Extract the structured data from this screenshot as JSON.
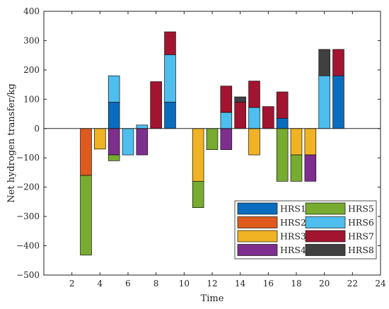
{
  "chart_data": {
    "type": "bar",
    "stacked": true,
    "title": "",
    "xlabel": "Time",
    "ylabel": "Net hydrogen transfer/kg",
    "xlim": [
      0,
      24
    ],
    "ylim": [
      -500,
      400
    ],
    "xticks": [
      2,
      4,
      6,
      8,
      10,
      12,
      14,
      16,
      18,
      20,
      22,
      24
    ],
    "yticks": [
      -500,
      -400,
      -300,
      -200,
      -100,
      0,
      100,
      200,
      300,
      400
    ],
    "grid": false,
    "legend_position": "bottom-right",
    "legend_columns": 2,
    "categories": [
      1,
      2,
      3,
      4,
      5,
      6,
      7,
      8,
      9,
      10,
      11,
      12,
      13,
      14,
      15,
      16,
      17,
      18,
      19,
      20,
      21,
      22,
      23
    ],
    "series": [
      {
        "name": "HRS1",
        "color": "#0a6cbf",
        "values": [
          0,
          0,
          0,
          0,
          90,
          0,
          0,
          0,
          90,
          0,
          0,
          0,
          0,
          0,
          0,
          0,
          35,
          0,
          0,
          0,
          180,
          0,
          0
        ]
      },
      {
        "name": "HRS2",
        "color": "#df5a1d",
        "values": [
          0,
          0,
          -160,
          0,
          0,
          0,
          0,
          0,
          0,
          0,
          0,
          0,
          0,
          0,
          0,
          0,
          0,
          0,
          0,
          0,
          0,
          0,
          0
        ]
      },
      {
        "name": "HRS3",
        "color": "#f0b323",
        "values": [
          0,
          0,
          0,
          -70,
          0,
          0,
          0,
          0,
          0,
          0,
          -180,
          0,
          0,
          0,
          -90,
          0,
          0,
          -90,
          -90,
          0,
          0,
          0,
          0
        ]
      },
      {
        "name": "HRS4",
        "color": "#7e2f8e",
        "values": [
          0,
          0,
          0,
          0,
          -90,
          0,
          -90,
          0,
          0,
          0,
          0,
          0,
          -72,
          0,
          0,
          0,
          0,
          0,
          -90,
          0,
          0,
          0,
          0
        ]
      },
      {
        "name": "HRS5",
        "color": "#77ac30",
        "values": [
          0,
          0,
          -272,
          0,
          -20,
          0,
          0,
          0,
          0,
          0,
          -90,
          -72,
          0,
          0,
          0,
          0,
          -180,
          -90,
          0,
          0,
          0,
          0,
          0
        ]
      },
      {
        "name": "HRS6",
        "color": "#4dbeee",
        "values": [
          0,
          0,
          0,
          0,
          90,
          -90,
          12,
          0,
          162,
          0,
          0,
          0,
          55,
          0,
          72,
          0,
          0,
          0,
          0,
          180,
          0,
          0,
          0
        ]
      },
      {
        "name": "HRS7",
        "color": "#a2142f",
        "values": [
          0,
          0,
          0,
          0,
          0,
          0,
          0,
          160,
          78,
          0,
          0,
          0,
          90,
          90,
          90,
          75,
          90,
          0,
          0,
          0,
          90,
          0,
          0
        ]
      },
      {
        "name": "HRS8",
        "color": "#404040",
        "values": [
          0,
          0,
          0,
          0,
          0,
          0,
          0,
          0,
          0,
          0,
          0,
          0,
          0,
          18,
          0,
          0,
          0,
          0,
          0,
          90,
          0,
          0,
          0
        ]
      }
    ]
  }
}
